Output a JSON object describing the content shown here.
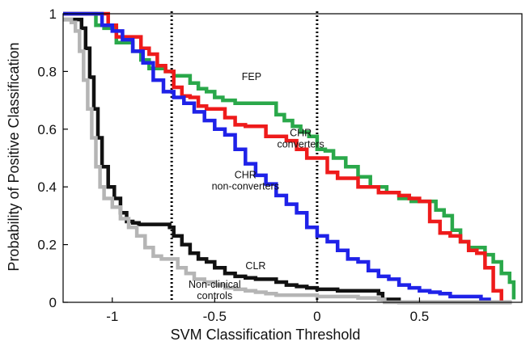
{
  "chart_data": {
    "type": "line",
    "xlabel": "SVM Classification Threshold",
    "ylabel": "Probability of Positive Classification",
    "xlim": [
      -1.24,
      1.0
    ],
    "ylim": [
      0,
      1
    ],
    "xticks": [
      -1,
      -0.5,
      0,
      0.5
    ],
    "xtick_labels": [
      "-1",
      "-0.5",
      "0",
      "0.5"
    ],
    "yticks": [
      0,
      0.2,
      0.4,
      0.6,
      0.8,
      1
    ],
    "ytick_labels": [
      "0",
      "0.2",
      "0.4",
      "0.6",
      "0.8",
      "1"
    ],
    "grid": false,
    "vlines": [
      {
        "x": -0.71,
        "style": "dotted",
        "color": "#000000"
      },
      {
        "x": 0.0,
        "style": "dotted",
        "color": "#000000"
      }
    ],
    "annotations": [
      {
        "lines": [
          "FEP"
        ],
        "x": -0.32,
        "y": 0.77
      },
      {
        "lines": [
          "CHR",
          "converters"
        ],
        "x": -0.08,
        "y": 0.575
      },
      {
        "lines": [
          "CHR",
          "non-converters"
        ],
        "x": -0.35,
        "y": 0.43
      },
      {
        "lines": [
          "CLR"
        ],
        "x": -0.3,
        "y": 0.115
      },
      {
        "lines": [
          "Non-clinical",
          "controls"
        ],
        "x": -0.5,
        "y": 0.05
      }
    ],
    "series": [
      {
        "color": "#2aa84a",
        "x": [
          -1.24,
          -1.12,
          -1.08,
          -1.04,
          -0.98,
          -0.94,
          -0.9,
          -0.86,
          -0.82,
          -0.78,
          -0.74,
          -0.7,
          -0.66,
          -0.62,
          -0.58,
          -0.54,
          -0.5,
          -0.46,
          -0.4,
          -0.3,
          -0.2,
          -0.16,
          -0.12,
          -0.08,
          -0.04,
          0.0,
          0.04,
          0.08,
          0.14,
          0.2,
          0.26,
          0.34,
          0.4,
          0.46,
          0.52,
          0.58,
          0.62,
          0.66,
          0.7,
          0.74,
          0.78,
          0.82,
          0.86,
          0.9,
          0.94,
          0.96
        ],
        "y": [
          1.0,
          1.0,
          0.96,
          0.95,
          0.9,
          0.9,
          0.87,
          0.84,
          0.81,
          0.81,
          0.8,
          0.785,
          0.785,
          0.76,
          0.74,
          0.73,
          0.71,
          0.7,
          0.69,
          0.69,
          0.65,
          0.63,
          0.61,
          0.59,
          0.575,
          0.53,
          0.525,
          0.5,
          0.47,
          0.435,
          0.4,
          0.38,
          0.36,
          0.35,
          0.35,
          0.32,
          0.3,
          0.25,
          0.21,
          0.19,
          0.19,
          0.165,
          0.14,
          0.1,
          0.07,
          0.01
        ]
      },
      {
        "color": "#ee1b1b",
        "x": [
          -1.24,
          -1.07,
          -1.02,
          -0.98,
          -0.94,
          -0.9,
          -0.86,
          -0.82,
          -0.78,
          -0.74,
          -0.7,
          -0.66,
          -0.62,
          -0.58,
          -0.54,
          -0.5,
          -0.45,
          -0.4,
          -0.35,
          -0.3,
          -0.25,
          -0.2,
          -0.15,
          -0.1,
          -0.05,
          0.0,
          0.05,
          0.1,
          0.15,
          0.2,
          0.25,
          0.3,
          0.35,
          0.4,
          0.45,
          0.5,
          0.55,
          0.6,
          0.65,
          0.7,
          0.74,
          0.78,
          0.82,
          0.86,
          0.9
        ],
        "y": [
          1.0,
          1.0,
          0.96,
          0.92,
          0.92,
          0.92,
          0.88,
          0.86,
          0.82,
          0.8,
          0.745,
          0.715,
          0.71,
          0.68,
          0.67,
          0.67,
          0.64,
          0.615,
          0.61,
          0.61,
          0.575,
          0.575,
          0.56,
          0.53,
          0.5,
          0.5,
          0.45,
          0.43,
          0.43,
          0.4,
          0.4,
          0.38,
          0.38,
          0.37,
          0.36,
          0.35,
          0.28,
          0.24,
          0.23,
          0.21,
          0.18,
          0.17,
          0.12,
          0.04,
          0.0
        ]
      },
      {
        "color": "#1f22e8",
        "x": [
          -1.24,
          -1.1,
          -1.05,
          -1.0,
          -0.95,
          -0.9,
          -0.85,
          -0.8,
          -0.75,
          -0.7,
          -0.65,
          -0.6,
          -0.55,
          -0.5,
          -0.45,
          -0.4,
          -0.35,
          -0.3,
          -0.25,
          -0.2,
          -0.15,
          -0.1,
          -0.05,
          0.0,
          0.05,
          0.1,
          0.15,
          0.2,
          0.25,
          0.3,
          0.35,
          0.4,
          0.45,
          0.5,
          0.55,
          0.6,
          0.65,
          0.7,
          0.75,
          0.8,
          0.84
        ],
        "y": [
          1.0,
          1.0,
          0.96,
          0.94,
          0.91,
          0.87,
          0.83,
          0.77,
          0.73,
          0.71,
          0.69,
          0.66,
          0.63,
          0.6,
          0.58,
          0.53,
          0.48,
          0.44,
          0.41,
          0.37,
          0.34,
          0.31,
          0.26,
          0.23,
          0.21,
          0.18,
          0.15,
          0.14,
          0.11,
          0.09,
          0.08,
          0.06,
          0.05,
          0.04,
          0.035,
          0.03,
          0.02,
          0.02,
          0.02,
          0.01,
          0.0
        ]
      },
      {
        "color": "#111111",
        "x": [
          -1.24,
          -1.18,
          -1.15,
          -1.13,
          -1.11,
          -1.09,
          -1.07,
          -1.05,
          -1.02,
          -0.99,
          -0.96,
          -0.93,
          -0.9,
          -0.87,
          -0.84,
          -0.8,
          -0.75,
          -0.72,
          -0.7,
          -0.66,
          -0.62,
          -0.58,
          -0.54,
          -0.5,
          -0.45,
          -0.4,
          -0.35,
          -0.3,
          -0.2,
          -0.15,
          -0.1,
          -0.05,
          0.0,
          0.05,
          0.1,
          0.2,
          0.3,
          0.32,
          0.4,
          0.95
        ],
        "y": [
          0.98,
          0.98,
          0.95,
          0.88,
          0.78,
          0.67,
          0.57,
          0.47,
          0.4,
          0.36,
          0.31,
          0.28,
          0.275,
          0.27,
          0.27,
          0.27,
          0.27,
          0.26,
          0.23,
          0.2,
          0.17,
          0.15,
          0.14,
          0.12,
          0.1,
          0.09,
          0.085,
          0.08,
          0.07,
          0.06,
          0.055,
          0.05,
          0.045,
          0.045,
          0.04,
          0.04,
          0.03,
          0.01,
          0.0,
          0.0
        ]
      },
      {
        "color": "#b5b5b5",
        "x": [
          -1.24,
          -1.2,
          -1.18,
          -1.16,
          -1.14,
          -1.12,
          -1.1,
          -1.08,
          -1.06,
          -1.04,
          -1.0,
          -0.96,
          -0.92,
          -0.88,
          -0.84,
          -0.8,
          -0.76,
          -0.72,
          -0.68,
          -0.64,
          -0.6,
          -0.55,
          -0.5,
          -0.45,
          -0.4,
          -0.35,
          -0.3,
          -0.25,
          -0.2,
          -0.1,
          0.0,
          0.1,
          0.2,
          0.3,
          0.33,
          0.4,
          0.95
        ],
        "y": [
          0.98,
          0.97,
          0.94,
          0.87,
          0.77,
          0.67,
          0.57,
          0.47,
          0.4,
          0.36,
          0.33,
          0.29,
          0.26,
          0.23,
          0.19,
          0.16,
          0.15,
          0.15,
          0.12,
          0.1,
          0.08,
          0.07,
          0.06,
          0.05,
          0.045,
          0.04,
          0.035,
          0.03,
          0.025,
          0.025,
          0.02,
          0.02,
          0.015,
          0.01,
          0.0,
          0.0,
          0.0
        ]
      }
    ]
  }
}
